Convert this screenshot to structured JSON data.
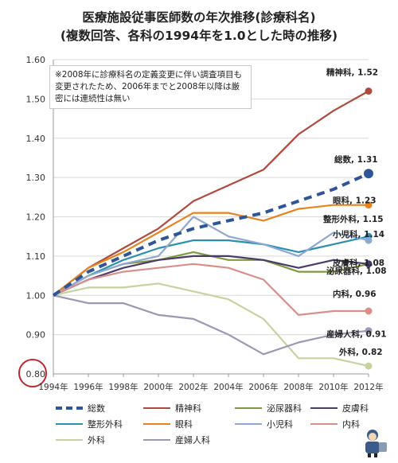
{
  "title_line1": "医療施設従事医師数の年次推移(診療科名)",
  "title_line2": "(複数回答、各科の1994年を1.0とした時の推移)",
  "note": "※2008年に診療科名の定義変更に伴い調査項目も変更されたため、2006年までと2008年以降は厳密には連続性は無い",
  "chart_data": {
    "type": "line",
    "x": [
      "1994年",
      "1996年",
      "1998年",
      "2000年",
      "2002年",
      "2004年",
      "2006年",
      "2008年",
      "2010年",
      "2012年"
    ],
    "ylim": [
      0.8,
      1.6
    ],
    "yticks": [
      "0.80",
      "0.90",
      "1.00",
      "1.10",
      "1.20",
      "1.30",
      "1.40",
      "1.50",
      "1.60"
    ],
    "grid": true,
    "legend": "bottom",
    "series": [
      {
        "name": "総数",
        "color": "#2e5597",
        "dashed": true,
        "values": [
          1.0,
          1.06,
          1.1,
          1.14,
          1.17,
          1.19,
          1.21,
          1.24,
          1.27,
          1.31
        ],
        "end_label": "総数, 1.31"
      },
      {
        "name": "精神科",
        "color": "#b04a3d",
        "values": [
          1.0,
          1.07,
          1.12,
          1.17,
          1.24,
          1.28,
          1.32,
          1.41,
          1.47,
          1.52
        ],
        "end_label": "精神科, 1.52"
      },
      {
        "name": "泌尿器科",
        "color": "#7f9a3e",
        "values": [
          1.0,
          1.05,
          1.08,
          1.09,
          1.11,
          1.09,
          1.09,
          1.06,
          1.06,
          1.08
        ],
        "end_label": "泌尿器科, 1.08"
      },
      {
        "name": "皮膚科",
        "color": "#4a3b6b",
        "values": [
          1.0,
          1.04,
          1.07,
          1.09,
          1.1,
          1.1,
          1.09,
          1.07,
          1.09,
          1.08
        ],
        "end_label": "皮膚科, 1.08"
      },
      {
        "name": "整形外科",
        "color": "#2b8fb0",
        "values": [
          1.0,
          1.05,
          1.09,
          1.12,
          1.14,
          1.14,
          1.13,
          1.11,
          1.13,
          1.15
        ],
        "end_label": "整形外科, 1.15"
      },
      {
        "name": "眼科",
        "color": "#e8821d",
        "values": [
          1.0,
          1.07,
          1.11,
          1.16,
          1.21,
          1.21,
          1.19,
          1.22,
          1.23,
          1.23
        ],
        "end_label": "眼科, 1.23"
      },
      {
        "name": "小児科",
        "color": "#8fa8d1",
        "values": [
          1.0,
          1.05,
          1.08,
          1.1,
          1.2,
          1.15,
          1.13,
          1.1,
          1.16,
          1.14
        ],
        "end_label": "小児科, 1.14"
      },
      {
        "name": "内科",
        "color": "#d98e8a",
        "values": [
          1.0,
          1.04,
          1.06,
          1.07,
          1.08,
          1.07,
          1.04,
          0.95,
          0.96,
          0.96
        ],
        "end_label": "内科, 0.96"
      },
      {
        "name": "外科",
        "color": "#c5d49e",
        "values": [
          1.0,
          1.02,
          1.02,
          1.03,
          1.01,
          0.99,
          0.94,
          0.84,
          0.84,
          0.82
        ],
        "end_label": "外科, 0.82"
      },
      {
        "name": "産婦人科",
        "color": "#9a98b5",
        "values": [
          1.0,
          0.98,
          0.98,
          0.95,
          0.94,
          0.9,
          0.85,
          0.88,
          0.9,
          0.91
        ],
        "end_label": "産婦人科, 0.91"
      }
    ]
  }
}
